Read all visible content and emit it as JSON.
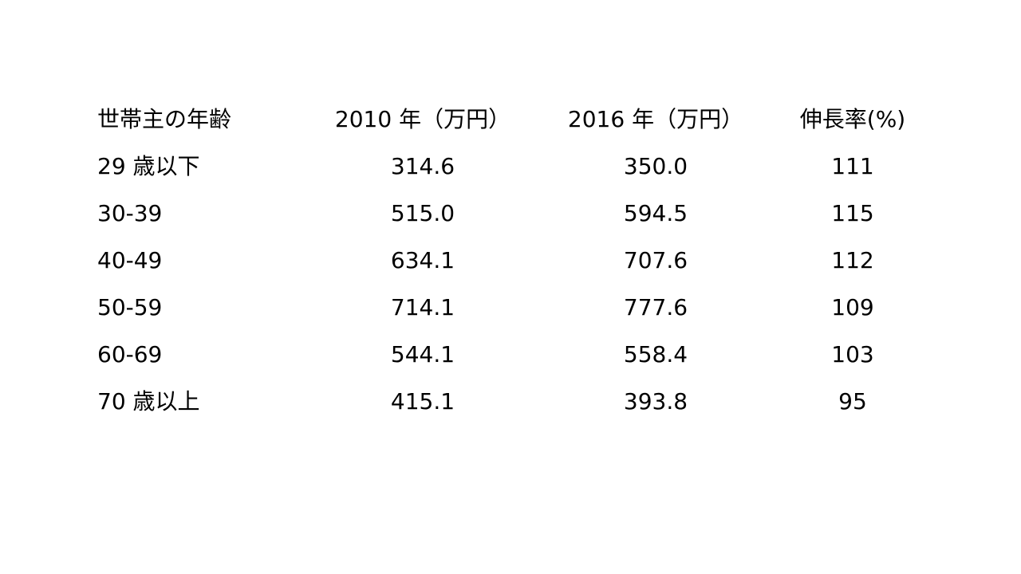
{
  "table": {
    "header": [
      "世帯主の年齢",
      "2010 年（万円）",
      "2016 年（万円）",
      "伸長率(%)"
    ],
    "rows": [
      [
        "29 歳以下",
        "314.6",
        "350.0",
        "111"
      ],
      [
        "30-39",
        "515.0",
        "594.5",
        "115"
      ],
      [
        "40-49",
        "634.1",
        "707.6",
        "112"
      ],
      [
        "50-59",
        "714.1",
        "777.6",
        "109"
      ],
      [
        "60-69",
        "544.1",
        "558.4",
        "103"
      ],
      [
        "70 歳以上",
        "415.1",
        "393.8",
        "95"
      ]
    ]
  }
}
